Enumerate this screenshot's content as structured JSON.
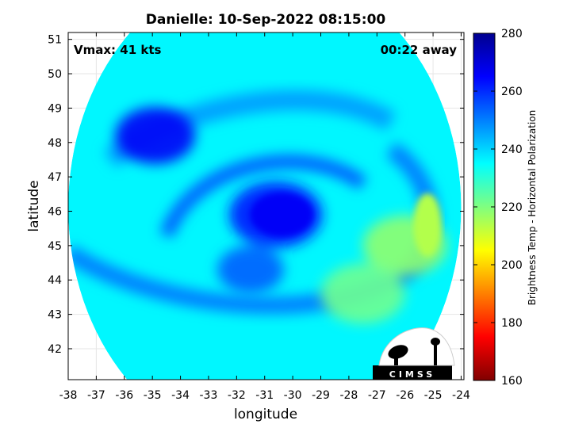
{
  "chart_data": {
    "type": "heatmap",
    "title": "Danielle: 10-Sep-2022 08:15:00",
    "xlabel": "longitude",
    "ylabel": "latitude",
    "xlim": [
      -38,
      -23.9
    ],
    "ylim": [
      41.1,
      51.2
    ],
    "x_ticks": [
      -38,
      -37,
      -36,
      -35,
      -34,
      -33,
      -32,
      -31,
      -30,
      -29,
      -28,
      -27,
      -26,
      -25,
      -24
    ],
    "y_ticks": [
      42,
      43,
      44,
      45,
      46,
      47,
      48,
      49,
      50,
      51
    ],
    "x_tick_labels": [
      "-38",
      "-37",
      "-36",
      "-35",
      "-34",
      "-33",
      "-32",
      "-31",
      "-30",
      "-29",
      "-28",
      "-27",
      "-26",
      "-25",
      "-24"
    ],
    "y_tick_labels": [
      "42",
      "43",
      "44",
      "45",
      "46",
      "47",
      "48",
      "49",
      "50",
      "51"
    ],
    "grid": true,
    "annotations": {
      "left": "Vmax: 41 kts",
      "right": "00:22 away"
    },
    "colorbar": {
      "label": "Brightness Temp - Horizontal Polarization",
      "range": [
        160,
        280
      ],
      "ticks": [
        160,
        180,
        200,
        220,
        240,
        260,
        280
      ],
      "tick_labels": [
        "160",
        "180",
        "200",
        "220",
        "240",
        "260",
        "280"
      ],
      "colormap": "jet"
    },
    "swath": {
      "center": [
        -31,
        46.1
      ],
      "radius_deg": 7.0,
      "background_value": 236
    },
    "features": [
      {
        "name": "storm core",
        "lon": -30.6,
        "lat": 45.9,
        "value": 262
      },
      {
        "name": "northwest cold region",
        "lon": -34.9,
        "lat": 48.2,
        "value": 266
      },
      {
        "name": "eastern warm band",
        "lon": -26.0,
        "lat": 45.0,
        "value": 218
      },
      {
        "name": "southeast warm region",
        "lon": -27.5,
        "lat": 43.6,
        "value": 222
      },
      {
        "name": "southern rainband",
        "lon": -31.5,
        "lat": 44.3,
        "value": 254
      }
    ]
  },
  "logo": {
    "text": "CIMSS"
  },
  "colors": {
    "frame": "#000000",
    "grid": "#e6e6e6"
  }
}
